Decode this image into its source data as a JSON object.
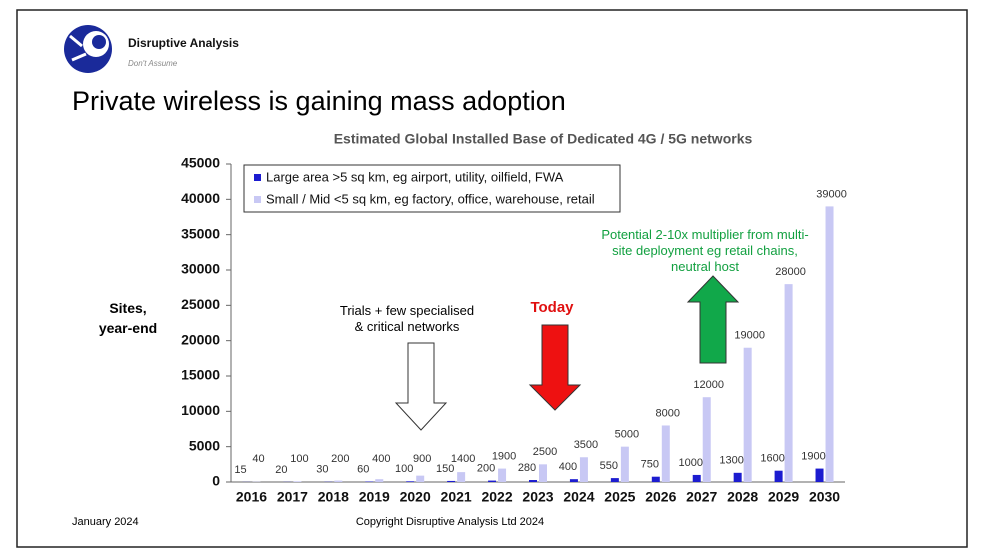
{
  "header": {
    "brand": "Disruptive Analysis",
    "tagline": "Don't Assume",
    "title": "Private wireless is gaining mass adoption"
  },
  "chart_data": {
    "type": "bar",
    "title": "Estimated Global Installed Base of Dedicated 4G / 5G networks",
    "y_label": "Sites, year-end",
    "categories": [
      "2016",
      "2017",
      "2018",
      "2019",
      "2020",
      "2021",
      "2022",
      "2023",
      "2024",
      "2025",
      "2026",
      "2027",
      "2028",
      "2029",
      "2030"
    ],
    "series": [
      {
        "name": "Large area >5 sq km, eg airport, utility, oilfield, FWA",
        "color": "#1c1cd0",
        "values": [
          15,
          20,
          30,
          60,
          100,
          150,
          200,
          280,
          400,
          550,
          750,
          1000,
          1300,
          1600,
          1900
        ]
      },
      {
        "name": "Small / Mid <5 sq km, eg factory, office, warehouse, retail",
        "color": "#c8c8f4",
        "values": [
          40,
          100,
          200,
          400,
          900,
          1400,
          1900,
          2500,
          3500,
          5000,
          8000,
          12000,
          19000,
          28000,
          39000
        ]
      }
    ],
    "ylim": [
      0,
      45000
    ],
    "yticks": [
      0,
      5000,
      10000,
      15000,
      20000,
      25000,
      30000,
      35000,
      40000,
      45000
    ],
    "grid": false,
    "annotations": {
      "trials": "Trials + few specialised & critical networks",
      "today": "Today",
      "potential": "Potential 2-10x multiplier from multi-site deployment eg retail chains, neutral host"
    }
  },
  "footer": {
    "date": "January 2024",
    "copyright": "Copyright Disruptive Analysis Ltd 2024"
  }
}
